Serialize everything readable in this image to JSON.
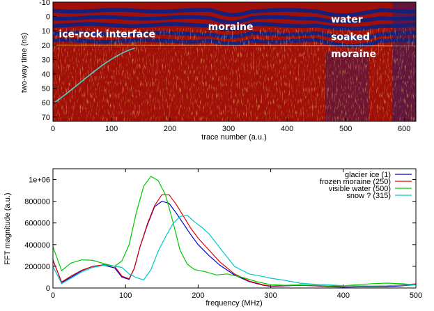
{
  "chart_data": [
    {
      "type": "heatmap",
      "xlabel": "trace number (a.u.)",
      "ylabel": "two-way time (ns)",
      "xlim": [
        0,
        620
      ],
      "ylim": [
        -10,
        73
      ],
      "y_inverted": true,
      "x_ticks": [
        "0",
        "100",
        "200",
        "300",
        "400",
        "500",
        "600"
      ],
      "y_ticks": [
        "-10",
        "0",
        "10",
        "20",
        "30",
        "40",
        "50",
        "60",
        "70"
      ],
      "colors": {
        "background": "#a01008",
        "band": "#16207a",
        "bright": "#f0a020",
        "cyan": "#40e0e0"
      },
      "annotations": [
        {
          "text": "ice-rock interface",
          "x": 10,
          "y": 12
        },
        {
          "text": "moraine",
          "x": 265,
          "y": 7
        },
        {
          "text": "water",
          "x": 475,
          "y": 2
        },
        {
          "text": "soaked",
          "x": 475,
          "y": 14
        },
        {
          "text": "moraine",
          "x": 475,
          "y": 26
        }
      ]
    },
    {
      "type": "line",
      "xlabel": "frequency (MHz)",
      "ylabel": "FFT magnitude (a.u.)",
      "xlim": [
        0,
        500
      ],
      "ylim": [
        0,
        1100000
      ],
      "x_ticks": [
        "0",
        "100",
        "200",
        "300",
        "400",
        "500"
      ],
      "y_ticks": [
        "0",
        "200000",
        "400000",
        "600000",
        "800000",
        "1e+06"
      ],
      "legend_position": "top-right",
      "series": [
        {
          "name": "glacier ice (1)",
          "color": "#0000c8",
          "x": [
            0,
            12,
            25,
            40,
            55,
            70,
            85,
            95,
            105,
            112,
            120,
            130,
            140,
            150,
            160,
            170,
            180,
            190,
            200,
            215,
            230,
            250,
            270,
            290,
            300,
            320,
            340,
            360,
            380,
            400,
            420,
            440,
            460,
            480,
            500
          ],
          "y": [
            260000,
            50000,
            100000,
            160000,
            200000,
            210000,
            185000,
            100000,
            80000,
            180000,
            380000,
            580000,
            750000,
            800000,
            780000,
            690000,
            590000,
            490000,
            400000,
            300000,
            210000,
            120000,
            60000,
            25000,
            15000,
            20000,
            25000,
            20000,
            12000,
            8000,
            10000,
            10000,
            12000,
            20000,
            30000
          ]
        },
        {
          "name": "frozen moraine (250)",
          "color": "#e00000",
          "x": [
            0,
            12,
            25,
            40,
            55,
            70,
            85,
            95,
            105,
            112,
            120,
            130,
            140,
            150,
            160,
            170,
            180,
            190,
            200,
            215,
            230,
            250,
            270,
            290,
            300,
            320,
            340,
            360,
            380,
            400,
            420,
            440,
            460,
            480,
            500
          ],
          "y": [
            255000,
            55000,
            110000,
            165000,
            200000,
            215000,
            200000,
            110000,
            85000,
            180000,
            380000,
            590000,
            760000,
            860000,
            860000,
            770000,
            660000,
            550000,
            460000,
            350000,
            240000,
            130000,
            65000,
            28000,
            18000,
            22000,
            25000,
            22000,
            15000,
            10000,
            10000,
            12000,
            18000,
            28000,
            38000
          ]
        },
        {
          "name": "visible water (500)",
          "color": "#00c800",
          "x": [
            0,
            12,
            25,
            40,
            55,
            70,
            85,
            95,
            105,
            115,
            125,
            135,
            145,
            155,
            165,
            175,
            185,
            195,
            210,
            225,
            240,
            260,
            280,
            300,
            320,
            340,
            360,
            380,
            400,
            420,
            440,
            460,
            480,
            500
          ],
          "y": [
            380000,
            160000,
            230000,
            260000,
            255000,
            225000,
            200000,
            250000,
            400000,
            700000,
            940000,
            1030000,
            990000,
            860000,
            620000,
            350000,
            220000,
            170000,
            150000,
            120000,
            130000,
            100000,
            60000,
            30000,
            25000,
            28000,
            25000,
            18000,
            20000,
            30000,
            40000,
            45000,
            40000,
            30000
          ]
        },
        {
          "name": "snow ? (315)",
          "color": "#00c8c8",
          "x": [
            0,
            12,
            25,
            40,
            55,
            70,
            85,
            95,
            105,
            115,
            125,
            135,
            145,
            155,
            165,
            175,
            185,
            195,
            205,
            215,
            230,
            250,
            270,
            290,
            300,
            320,
            340,
            360,
            380,
            400,
            420,
            440,
            460,
            480,
            500
          ],
          "y": [
            200000,
            40000,
            90000,
            150000,
            190000,
            210000,
            200000,
            190000,
            130000,
            95000,
            75000,
            170000,
            340000,
            470000,
            590000,
            660000,
            670000,
            610000,
            560000,
            500000,
            370000,
            200000,
            130000,
            105000,
            90000,
            70000,
            45000,
            35000,
            28000,
            22000,
            20000,
            18000,
            20000,
            25000,
            30000
          ]
        }
      ]
    }
  ]
}
